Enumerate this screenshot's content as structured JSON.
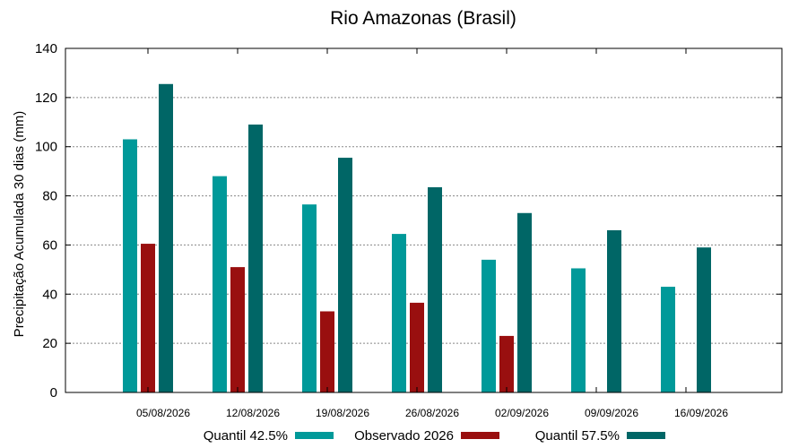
{
  "chart_data": {
    "type": "bar",
    "title": "Rio Amazonas (Brasil)",
    "xlabel": "",
    "ylabel": "Precipitação Acumulada 30 dias (mm)",
    "ylim": [
      0,
      140
    ],
    "yticks": [
      0,
      20,
      40,
      60,
      80,
      100,
      120,
      140
    ],
    "grid": true,
    "legend_position": "bottom",
    "categories": [
      "05/08/2026",
      "12/08/2026",
      "19/08/2026",
      "26/08/2026",
      "02/09/2026",
      "09/09/2026",
      "16/09/2026"
    ],
    "series": [
      {
        "name": "Quantil 42.5%",
        "color": "#009999",
        "values": [
          103,
          88,
          76.5,
          64.5,
          54,
          50.5,
          43
        ]
      },
      {
        "name": "Observado 2026",
        "color": "#990f0f",
        "values": [
          60.5,
          51,
          33,
          36.5,
          23,
          null,
          null
        ]
      },
      {
        "name": "Quantil 57.5%",
        "color": "#006666",
        "values": [
          125.5,
          109,
          95.5,
          83.5,
          73,
          66,
          59
        ]
      }
    ]
  }
}
